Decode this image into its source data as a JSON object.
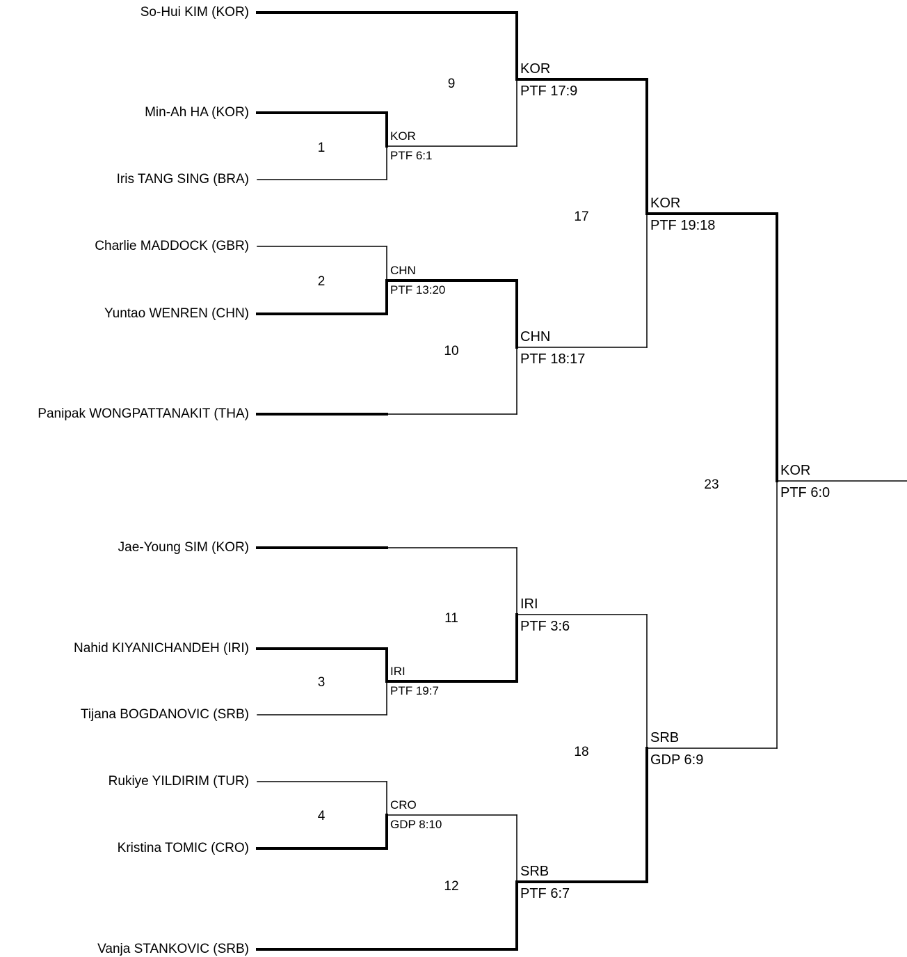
{
  "players": [
    "So-Hui KIM (KOR)",
    "Min-Ah HA (KOR)",
    "Iris TANG SING (BRA)",
    "Charlie MADDOCK (GBR)",
    "Yuntao WENREN (CHN)",
    "Panipak WONGPATTANAKIT (THA)",
    "Jae-Young SIM (KOR)",
    "Nahid KIYANICHANDEH (IRI)",
    "Tijana BOGDANOVIC (SRB)",
    "Rukiye YILDIRIM (TUR)",
    "Kristina TOMIC (CRO)",
    "Vanja STANKOVIC (SRB)"
  ],
  "matches": {
    "m1": {
      "number": "1",
      "winner": "KOR",
      "score": "PTF 6:1"
    },
    "m2": {
      "number": "2",
      "winner": "CHN",
      "score": "PTF 13:20"
    },
    "m3": {
      "number": "3",
      "winner": "IRI",
      "score": "PTF 19:7"
    },
    "m4": {
      "number": "4",
      "winner": "CRO",
      "score": "GDP 8:10"
    },
    "m9": {
      "number": "9",
      "winner": "KOR",
      "score": "PTF 17:9"
    },
    "m10": {
      "number": "10",
      "winner": "CHN",
      "score": "PTF 18:17"
    },
    "m11": {
      "number": "11",
      "winner": "IRI",
      "score": "PTF 3:6"
    },
    "m12": {
      "number": "12",
      "winner": "SRB",
      "score": "PTF 6:7"
    },
    "m17": {
      "number": "17",
      "winner": "KOR",
      "score": "PTF 19:18"
    },
    "m18": {
      "number": "18",
      "winner": "SRB",
      "score": "GDP 6:9"
    },
    "m23": {
      "number": "23",
      "winner": "KOR",
      "score": "PTF 6:0"
    }
  }
}
